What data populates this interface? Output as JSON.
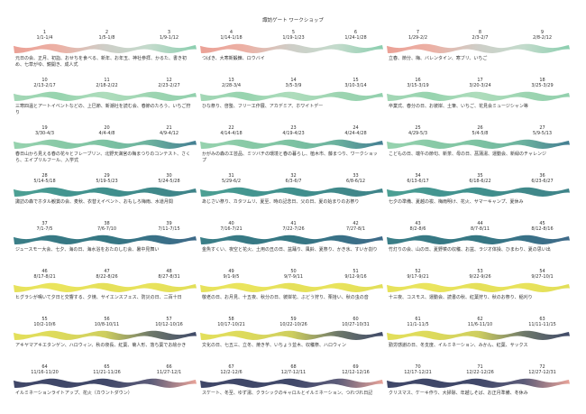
{
  "title": "諏訪ゲート ワークショップ",
  "rows": [
    {
      "cells": [
        {
          "number": "1",
          "dates": "1/1-1/4"
        },
        {
          "number": "2",
          "dates": "1/5-1/8"
        },
        {
          "number": "3",
          "dates": "1/9-1/12"
        },
        {
          "number": "4",
          "dates": "1/14-1/18"
        },
        {
          "number": "5",
          "dates": "1/19-1/23"
        },
        {
          "number": "6",
          "dates": "1/24-1/28"
        },
        {
          "number": "7",
          "dates": "1/29-2/2"
        },
        {
          "number": "8",
          "dates": "2/3-2/7"
        },
        {
          "number": "9",
          "dates": "2/8-2/12"
        }
      ],
      "notes": [
        "元日の会、正月、初詣、おせちを食べる、新年、お年玉、神社参拝、かるた、書き初め、七草がゆ、鏡開き、成人式",
        "つばき、大寒新鍛錬、ロウバイ",
        "立春、節分、梅、バレンタイン、寒ブリ、いちご"
      ]
    },
    {
      "cells": [
        {
          "number": "10",
          "dates": "2/13-2/17"
        },
        {
          "number": "11",
          "dates": "2/18-2/22"
        },
        {
          "number": "12",
          "dates": "2/23-2/27"
        },
        {
          "number": "13",
          "dates": "2/28-3/4"
        },
        {
          "number": "14",
          "dates": "3/5-3/9"
        },
        {
          "number": "15",
          "dates": "3/10-3/14"
        },
        {
          "number": "16",
          "dates": "3/15-3/19"
        },
        {
          "number": "17",
          "dates": "3/20-3/24"
        },
        {
          "number": "18",
          "dates": "3/25-3/29"
        }
      ],
      "notes": [
        "三寒四温とアートイベントなどの、上巳節、新潮社を読む会、春節のたろう、いちご狩り",
        "ひな祭り、啓蟄、フリー工作展、アカデミア、ホワイトデー",
        "卒業式、春分の日、お彼岸、土筆、いちご、花見会ミュージシャン等"
      ]
    },
    {
      "cells": [
        {
          "number": "19",
          "dates": "3/30-4/3"
        },
        {
          "number": "20",
          "dates": "4/4-4/8"
        },
        {
          "number": "21",
          "dates": "4/9-4/12"
        },
        {
          "number": "22",
          "dates": "4/14-4/18"
        },
        {
          "number": "23",
          "dates": "4/19-4/23"
        },
        {
          "number": "24",
          "dates": "4/24-4/28"
        },
        {
          "number": "25",
          "dates": "4/29-5/3"
        },
        {
          "number": "26",
          "dates": "5/4-5/8"
        },
        {
          "number": "27",
          "dates": "5/9-5/13"
        }
      ],
      "notes": [
        "春日山から見える春の花々とフレーブリン、北野天満宮の梅まつりのコンテスト、さくら、エイプリルフール、入学式",
        "かがみの森の工芸品、ミツバチの環境と春の暮らし、植木市、藤まつり、ワークショップ",
        "こどもの日、端午の節句、新茶、母の日、菖蒲湯、運動会、新緑のチャレンジ"
      ]
    },
    {
      "cells": [
        {
          "number": "28",
          "dates": "5/14-5/18"
        },
        {
          "number": "29",
          "dates": "5/19-5/23"
        },
        {
          "number": "30",
          "dates": "5/24-5/28"
        },
        {
          "number": "31",
          "dates": "5/29-6/2"
        },
        {
          "number": "32",
          "dates": "6/3-6/7"
        },
        {
          "number": "33",
          "dates": "6/8-6/12"
        },
        {
          "number": "34",
          "dates": "6/13-6/17"
        },
        {
          "number": "35",
          "dates": "6/18-6/22"
        },
        {
          "number": "36",
          "dates": "6/23-6/27"
        }
      ],
      "notes": [
        "諏訪の森でホタル観賞の会、麦秋、衣替えイベント、おもしろ梅雨、水道月間",
        "あじさい祭り、カタツムリ、夏至、時の記念日、父の日、夏の始まりのお祭り",
        "七夕の準備、夏越の祓、梅雨明け、花火、サマーキャンプ、夏休み"
      ]
    },
    {
      "cells": [
        {
          "number": "37",
          "dates": "7/1-7/5"
        },
        {
          "number": "38",
          "dates": "7/6-7/10"
        },
        {
          "number": "39",
          "dates": "7/11-7/15"
        },
        {
          "number": "40",
          "dates": "7/16-7/21"
        },
        {
          "number": "41",
          "dates": "7/22-7/26"
        },
        {
          "number": "42",
          "dates": "7/27-8/1"
        },
        {
          "number": "43",
          "dates": "8/2-8/6"
        },
        {
          "number": "44",
          "dates": "8/7-8/11"
        },
        {
          "number": "45",
          "dates": "8/12-8/16"
        }
      ],
      "notes": [
        "ジュースモー大会、七夕、海の日、海水浴をおたのしむ会、暑中見舞い",
        "金魚すくい、夜空と花火、土用の丑の日、盆踊り、風鈴、夏祭り、かき氷、すいか割り",
        "竹灯りの会、山の日、夏野菜の収穫、お盆、ラジオ体操、ひまわり、夏の思い出"
      ]
    },
    {
      "cells": [
        {
          "number": "46",
          "dates": "8/17-8/21"
        },
        {
          "number": "47",
          "dates": "8/22-8/26"
        },
        {
          "number": "48",
          "dates": "8/27-8/31"
        },
        {
          "number": "49",
          "dates": "9/1-9/5"
        },
        {
          "number": "50",
          "dates": "9/7-9/11"
        },
        {
          "number": "51",
          "dates": "9/12-9/16"
        },
        {
          "number": "52",
          "dates": "9/17-9/21"
        },
        {
          "number": "53",
          "dates": "9/22-9/26"
        },
        {
          "number": "54",
          "dates": "9/27-10/1"
        }
      ],
      "notes": [
        "ヒグラシが鳴いて夕日と交響する、夕焼、サイエンスフェス、防災の日、二百十日",
        "敬老の日、お月見、十五夜、秋分の日、彼岸花、ぶどう狩り、栗拾い、秋の虫の音",
        "十三夜、コスモス、運動会、読書の秋、紅葉狩り、秋のお祭り、稲刈り"
      ]
    },
    {
      "cells": [
        {
          "number": "55",
          "dates": "10/2-10/6"
        },
        {
          "number": "56",
          "dates": "10/8-10/11"
        },
        {
          "number": "57",
          "dates": "10/12-10/16"
        },
        {
          "number": "58",
          "dates": "10/17-10/21"
        },
        {
          "number": "59",
          "dates": "10/22-10/26"
        },
        {
          "number": "60",
          "dates": "10/27-10/31"
        },
        {
          "number": "61",
          "dates": "11/1-11/5"
        },
        {
          "number": "62",
          "dates": "11/6-11/10"
        },
        {
          "number": "63",
          "dates": "11/11-11/15"
        }
      ],
      "notes": [
        "アキヤマアキエタンゲン、ハロウィン、秋の夜長、紅葉、菊人形、落ち葉でお絵かき",
        "文化の日、七五三、立冬、焼き芋、いちょう並木、収穫祭、ハロウィン",
        "勤労感謝の日、冬支度、イルミネーション、みかん、紅葉、サックス"
      ]
    },
    {
      "cells": [
        {
          "number": "64",
          "dates": "11/16-11/20"
        },
        {
          "number": "65",
          "dates": "11/21-11/26"
        },
        {
          "number": "66",
          "dates": "11/27-12/1"
        },
        {
          "number": "67",
          "dates": "12/2-12/6"
        },
        {
          "number": "68",
          "dates": "12/7-12/11"
        },
        {
          "number": "69",
          "dates": "12/12-12/16"
        },
        {
          "number": "70",
          "dates": "12/17-12/21"
        },
        {
          "number": "71",
          "dates": "12/22-12/26"
        },
        {
          "number": "72",
          "dates": "12/27-12/31"
        }
      ],
      "notes": [
        "イルミネーションライトアップ、花火（カウントダウン）",
        "スケート、冬至、ゆず湯、クラシックのキャロルとイルミネーション、つれづれ日記",
        "クリスマス、ケーキ作り、大掃除、年越しそば、お正月準備、冬休み"
      ]
    }
  ]
}
